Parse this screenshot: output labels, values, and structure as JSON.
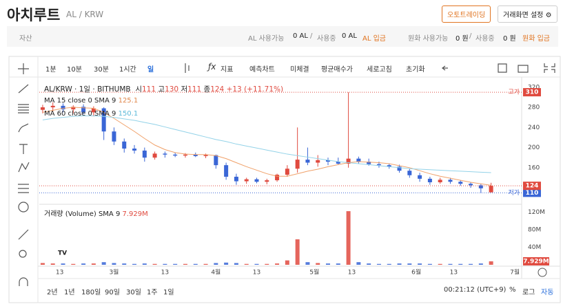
{
  "header": {
    "title": "아치루트",
    "pair": "AL / KRW",
    "auto_trading": "오토트레이딩",
    "settings": "거래화면 설정"
  },
  "asset_bar": {
    "label": "자산",
    "coin_available": "AL 사용가능",
    "coin_available_value": "0 AL",
    "slash": "/",
    "coin_in_use": "사용중",
    "coin_in_use_value": "0 AL",
    "coin_deposit": "AL 입금",
    "krw_available": "원화 사용가능",
    "krw_available_value": "0 원",
    "krw_in_use": "사용중",
    "krw_in_use_value": "0 원",
    "krw_deposit": "원화 입금"
  },
  "toolbar": {
    "intervals": [
      "1분",
      "10분",
      "30분",
      "1시간",
      "일"
    ],
    "indicator": "지표",
    "buttons": [
      "예측차트",
      "미체결",
      "평균매수가",
      "세로고침",
      "초기화"
    ]
  },
  "legend": {
    "symbol": "AL/KRW · 1일 · BITHUMB",
    "open": "시",
    "high": "고",
    "low": "저",
    "close": "종",
    "change": "+13 (+11.71%)",
    "volume_title": "거래량 (Volume) SMA 9"
  },
  "range_bar": {
    "ranges": [
      "2년",
      "1년",
      "180일",
      "90일",
      "30일",
      "1주",
      "1일"
    ],
    "clock": "00:21:12 (UTC+9)",
    "percent": "%",
    "log": "로그",
    "auto": "자동"
  },
  "chart_data": {
    "type": "candlestick",
    "x": [
      1,
      4,
      7,
      10,
      13,
      16,
      19,
      22,
      25,
      28,
      31,
      34,
      37,
      40,
      43,
      46,
      49,
      52,
      55,
      58,
      61,
      64,
      67,
      70,
      73,
      76,
      79,
      82,
      85,
      88,
      91,
      94,
      97,
      100,
      103,
      106,
      109,
      112,
      115,
      118,
      121,
      124,
      127,
      130,
      133
    ],
    "open": [
      275,
      280,
      283,
      276,
      281,
      270,
      278,
      232,
      212,
      198,
      194,
      180,
      188,
      186,
      184,
      186,
      183,
      185,
      165,
      142,
      133,
      137,
      132,
      135,
      146,
      158,
      176,
      170,
      175,
      172,
      168,
      178,
      172,
      167,
      165,
      162,
      154,
      145,
      138,
      131,
      136,
      132,
      128,
      125,
      111
    ],
    "high": [
      285,
      290,
      288,
      284,
      286,
      282,
      280,
      240,
      218,
      205,
      200,
      192,
      192,
      190,
      189,
      190,
      188,
      186,
      170,
      148,
      140,
      140,
      138,
      148,
      165,
      240,
      200,
      185,
      180,
      180,
      310,
      182,
      178,
      172,
      168,
      166,
      158,
      150,
      142,
      140,
      140,
      135,
      131,
      128,
      130
    ],
    "low": [
      268,
      272,
      270,
      268,
      266,
      262,
      215,
      205,
      190,
      188,
      172,
      176,
      180,
      181,
      180,
      181,
      179,
      158,
      136,
      126,
      128,
      129,
      127,
      132,
      142,
      150,
      165,
      162,
      165,
      166,
      160,
      168,
      164,
      160,
      158,
      150,
      140,
      132,
      126,
      128,
      128,
      124,
      120,
      110,
      111
    ],
    "close": [
      280,
      283,
      276,
      281,
      270,
      278,
      232,
      212,
      198,
      194,
      180,
      188,
      186,
      184,
      186,
      183,
      185,
      165,
      142,
      133,
      137,
      132,
      135,
      146,
      158,
      176,
      170,
      175,
      172,
      168,
      178,
      172,
      167,
      165,
      162,
      154,
      145,
      138,
      131,
      136,
      132,
      128,
      125,
      119,
      124
    ],
    "up_color": "#e04a3f",
    "down_color": "#3a66d6",
    "xlim": [
      0,
      142
    ],
    "xticks": [
      {
        "value": 6,
        "label": "13"
      },
      {
        "value": 22,
        "label": "3월"
      },
      {
        "value": 37,
        "label": "13"
      },
      {
        "value": 52,
        "label": "4월"
      },
      {
        "value": 64,
        "label": "13"
      },
      {
        "value": 81,
        "label": "5월"
      },
      {
        "value": 92,
        "label": "13"
      },
      {
        "value": 111,
        "label": "6월"
      },
      {
        "value": 122,
        "label": "13"
      },
      {
        "value": 140,
        "label": "7월"
      }
    ],
    "ylim": [
      90,
      332
    ],
    "yticks": [
      320,
      280,
      240,
      200,
      160
    ],
    "high_label": "고가",
    "low_label": "저가",
    "series": [
      {
        "name": "MA 15 close 0 SMA 9",
        "color": "#f0a068",
        "values": [
          270,
          274,
          278,
          280,
          279,
          278,
          270,
          258,
          245,
          232,
          218,
          205,
          196,
          190,
          187,
          186,
          186,
          184,
          178,
          170,
          162,
          155,
          148,
          143,
          143,
          148,
          153,
          157,
          162,
          166,
          170,
          172,
          171,
          170,
          168,
          164,
          160,
          154,
          148,
          143,
          139,
          135,
          131,
          128,
          125.1
        ]
      },
      {
        "name": "MA 60 close 0 SMA 9",
        "color": "#92d2e8",
        "values": [
          255,
          258,
          260,
          262,
          263,
          263,
          262,
          260,
          257,
          254,
          250,
          246,
          241,
          236,
          231,
          226,
          221,
          216,
          212,
          207,
          203,
          199,
          195,
          191,
          187,
          184,
          181,
          178,
          175,
          172,
          170,
          168,
          166,
          164,
          162,
          160,
          158,
          157,
          156,
          155,
          154,
          153,
          152,
          151,
          150.1
        ]
      }
    ],
    "volume": {
      "values": [
        4,
        3,
        3,
        2,
        3,
        3,
        6,
        4,
        3,
        2,
        3,
        2,
        2,
        2,
        2,
        2,
        2,
        4,
        5,
        4,
        2,
        2,
        2,
        3,
        10,
        58,
        6,
        4,
        3,
        3,
        122,
        6,
        3,
        2,
        2,
        3,
        3,
        3,
        2,
        2,
        2,
        2,
        2,
        3,
        7.929
      ],
      "value_labels": [
        null,
        null,
        null,
        null,
        null,
        null,
        null,
        null,
        null,
        null,
        null,
        null,
        null,
        null,
        null,
        null,
        null,
        null,
        null,
        null,
        null,
        null,
        null,
        null,
        null,
        null,
        null,
        null,
        null,
        null,
        null,
        null,
        null,
        null,
        null,
        null,
        null,
        null,
        null,
        null,
        null,
        null,
        null,
        null,
        "7.929M"
      ],
      "ylim": [
        0,
        133
      ],
      "yticks": [
        {
          "value": 120,
          "label": "120M"
        },
        {
          "value": 80,
          "label": "80M"
        },
        {
          "value": 40,
          "label": "40M"
        }
      ]
    }
  }
}
